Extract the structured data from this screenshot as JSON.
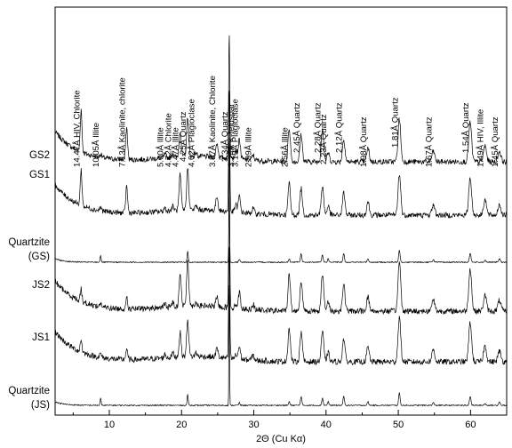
{
  "chart_data": {
    "type": "line",
    "title": "",
    "xlabel": "2Θ (Cu Kα)",
    "ylabel": "",
    "xlim": [
      2.5,
      65
    ],
    "xticks": [
      10,
      20,
      30,
      40,
      50,
      60
    ],
    "grid": false,
    "peaks_x": [
      6.1,
      8.8,
      12.4,
      17.7,
      18.8,
      19.8,
      20.85,
      22.0,
      24.9,
      26.6,
      27.5,
      28.0,
      29.9,
      34.9,
      36.55,
      39.5,
      40.3,
      42.45,
      45.8,
      50.15,
      54.85,
      59.95,
      62.0,
      64.0
    ],
    "series": [
      {
        "name": "GS2",
        "values": [
          48,
          4,
          36,
          4,
          5,
          30,
          45,
          4,
          16,
          145,
          10,
          22,
          6,
          38,
          30,
          38,
          10,
          25,
          15,
          48,
          12,
          44,
          18,
          12
        ]
      },
      {
        "name": "GS1",
        "values": [
          40,
          4,
          30,
          4,
          5,
          40,
          48,
          4,
          16,
          140,
          8,
          18,
          6,
          36,
          30,
          33,
          10,
          25,
          15,
          46,
          12,
          42,
          18,
          12
        ]
      },
      {
        "name": "Quartzite (GS)",
        "values": [
          0,
          8,
          0,
          0,
          0,
          0,
          12,
          0,
          0,
          150,
          0,
          3,
          0,
          4,
          10,
          8,
          4,
          10,
          4,
          14,
          3,
          10,
          2,
          4
        ]
      },
      {
        "name": "JS2",
        "values": [
          14,
          4,
          12,
          4,
          5,
          38,
          54,
          4,
          10,
          130,
          4,
          18,
          6,
          42,
          34,
          42,
          10,
          30,
          16,
          56,
          14,
          48,
          18,
          12
        ]
      },
      {
        "name": "JS1",
        "values": [
          14,
          4,
          12,
          4,
          5,
          28,
          42,
          4,
          10,
          130,
          4,
          14,
          6,
          38,
          34,
          34,
          10,
          26,
          16,
          50,
          14,
          44,
          18,
          12
        ]
      },
      {
        "name": "Quartzite (JS)",
        "values": [
          0,
          8,
          0,
          0,
          0,
          0,
          12,
          0,
          0,
          150,
          0,
          3,
          0,
          4,
          10,
          8,
          4,
          10,
          4,
          14,
          3,
          10,
          2,
          4
        ]
      }
    ],
    "annotations": [
      {
        "x": 6.1,
        "text": "14.47Å HIV, Chlorite"
      },
      {
        "x": 8.8,
        "text": "10.05Å  Illite"
      },
      {
        "x": 12.4,
        "text": "7.13Å  Kaolinite, chlorite"
      },
      {
        "x": 17.7,
        "text": "5.00Å  Illite"
      },
      {
        "x": 18.8,
        "text": "4.72Å  Chlorite"
      },
      {
        "x": 19.8,
        "text": "4.47Å  Illite"
      },
      {
        "x": 20.85,
        "text": "4.25Å  Quartz"
      },
      {
        "x": 22.0,
        "text": "4.02Å  Plagioclase"
      },
      {
        "x": 24.9,
        "text": "3.57Å  Kaolinite, Chlorite"
      },
      {
        "x": 26.6,
        "text": "3.34Å  Quartz"
      },
      {
        "x": 27.5,
        "text": "3.24Å  K-feldspar"
      },
      {
        "x": 28.0,
        "text": "3.19Å  Plagioclase"
      },
      {
        "x": 29.9,
        "text": "2.99Å  Illite"
      },
      {
        "x": 34.9,
        "text": "2.56Å  Illite"
      },
      {
        "x": 36.55,
        "text": "2.45Å  Quartz"
      },
      {
        "x": 39.5,
        "text": "2.28Å  Quartz"
      },
      {
        "x": 40.3,
        "text": "2.23Å  Quartz"
      },
      {
        "x": 42.45,
        "text": "2.12Å  Quartz"
      },
      {
        "x": 45.8,
        "text": "1.98Å  Quartz"
      },
      {
        "x": 50.15,
        "text": "1.81Å  Quartz"
      },
      {
        "x": 54.85,
        "text": "1.67Å  Quartz"
      },
      {
        "x": 59.95,
        "text": "1.54Å  Quartz"
      },
      {
        "x": 62.0,
        "text": "1.49Å  HIV, Illite"
      },
      {
        "x": 64.0,
        "text": "1.45Å  Quartz"
      }
    ]
  }
}
